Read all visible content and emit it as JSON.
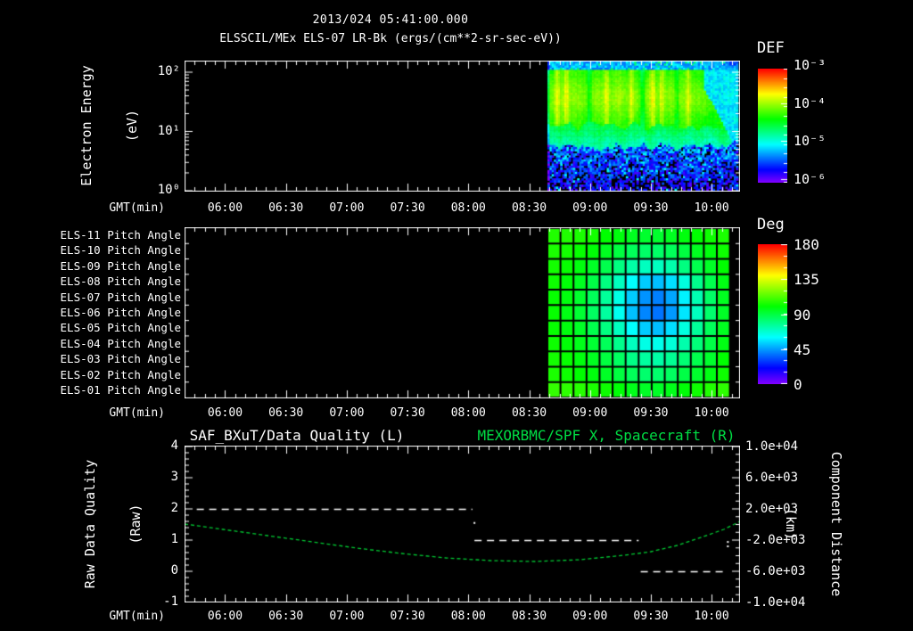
{
  "titles": {
    "datetime": "2013/024 05:41:00.000",
    "main": "ELSSCIL/MEx ELS-07 LR-Bk  (ergs/(cm**2-sr-sec-eV))"
  },
  "colorbars": {
    "def": {
      "label": "DEF",
      "tick_labels": [
        "10⁻³",
        "10⁻⁴",
        "10⁻⁵",
        "10⁻⁶"
      ],
      "scale": "log"
    },
    "deg": {
      "label": "Deg",
      "tick_labels": [
        "180",
        "135",
        "90",
        "45",
        "0"
      ],
      "range": [
        0,
        180
      ]
    }
  },
  "axes": {
    "gmt_label": "GMT(min)",
    "time_ticks": [
      "06:00",
      "06:30",
      "07:00",
      "07:30",
      "08:00",
      "08:30",
      "09:00",
      "09:30",
      "10:00"
    ],
    "time_start_min": 340,
    "time_end_min": 614,
    "energy_ticks": [
      "10²",
      "10¹",
      "10⁰"
    ],
    "quality_ticks": [
      "4",
      "3",
      "2",
      "1",
      "0",
      "-1"
    ],
    "distance_ticks": [
      "1.0e+04",
      "6.0e+03",
      "2.0e+03",
      "-2.0e+03",
      "-6.0e+03",
      "-1.0e+04"
    ]
  },
  "labels": {
    "energy": {
      "line1": "Electron Energy",
      "line2": "(eV)"
    },
    "quality": {
      "line1": "Raw Data Quality",
      "line2": "(Raw)"
    },
    "distance": {
      "line1": "Component Distance",
      "line2": "(km)"
    },
    "bottom_left_title": "SAF_BXuT/Data Quality (L)",
    "bottom_right_title": "MEXORBMC/SPF X, Spacecraft (R)",
    "pitch_rows": [
      "ELS-11 Pitch Angle",
      "ELS-10 Pitch Angle",
      "ELS-09 Pitch Angle",
      "ELS-08 Pitch Angle",
      "ELS-07 Pitch Angle",
      "ELS-06 Pitch Angle",
      "ELS-05 Pitch Angle",
      "ELS-04 Pitch Angle",
      "ELS-03 Pitch Angle",
      "ELS-02 Pitch Angle",
      "ELS-01 Pitch Angle"
    ]
  },
  "colors": {
    "background": "#000000",
    "text": "#ffffff",
    "green_title": "#00dd44",
    "curve_green": "#00cc33",
    "frame": "#ffffff"
  },
  "chart_data": [
    {
      "type": "heatmap",
      "title": "2013/024 05:41:00.000",
      "subtitle": "ELSSCIL/MEx ELS-07 LR-Bk (ergs/(cm**2-sr-sec-eV))",
      "xlabel": "GMT(min)",
      "ylabel": "Electron Energy (eV)",
      "y_scale": "log",
      "y_range_ev": [
        1,
        160
      ],
      "x_ticks": [
        "06:00",
        "06:30",
        "07:00",
        "07:30",
        "08:00",
        "08:30",
        "09:00",
        "09:30",
        "10:00"
      ],
      "x_range": [
        "05:40",
        "10:14"
      ],
      "colorbar": {
        "label": "DEF",
        "units": "ergs/(cm**2-sr-sec-eV)",
        "scale": "log",
        "ticks": [
          "1e-3",
          "1e-4",
          "1e-5",
          "1e-6"
        ]
      },
      "data_start": "08:39",
      "data_end": "10:13",
      "data_start_min": 519,
      "data_end_min": 613,
      "features": [
        "no data (black) before 08:39",
        "bright green band ~10-100 eV (~1e-4) with brighter yellow-green vertical streaks",
        "cyan band ~5-10 eV (~3e-5) with jagged lower boundary",
        "blue-violet speckle below ~5 eV (~1e-6..1e-5) with black gaps",
        "narrow blue speckle band at very top (>130 eV)",
        "upper energies turn blue (lower flux) after ~09:55"
      ],
      "render_model": {
        "seed": 42,
        "cols": 90,
        "rows": 62,
        "e_top_blue": 0.93,
        "v_top_blue": 0.2,
        "e_green_bot": 0.5,
        "v_green": 0.58,
        "peak_e": 0.72,
        "peak_amp": 0.09,
        "streak_amp": 0.07,
        "e_cyan_bot": 0.345,
        "v_cyan_bot": 0.4,
        "speckle_black_base": 0.1,
        "speckle_black_slope": 0.38,
        "bright_streaks": [
          0.05,
          0.1,
          0.31,
          0.44,
          0.555,
          0.6,
          0.74
        ],
        "dark_streaks": [
          0.22,
          0.5,
          0.68,
          0.97
        ],
        "right_fade_u": 0.82,
        "right_fade_v": 0.27
      }
    },
    {
      "type": "heatmap",
      "rows": [
        "ELS-11 Pitch Angle",
        "ELS-10 Pitch Angle",
        "ELS-09 Pitch Angle",
        "ELS-08 Pitch Angle",
        "ELS-07 Pitch Angle",
        "ELS-06 Pitch Angle",
        "ELS-05 Pitch Angle",
        "ELS-04 Pitch Angle",
        "ELS-03 Pitch Angle",
        "ELS-02 Pitch Angle",
        "ELS-01 Pitch Angle"
      ],
      "colorbar": {
        "label": "Deg",
        "range": [
          0,
          180
        ],
        "ticks": [
          180,
          135,
          90,
          45,
          0
        ]
      },
      "col_start_min": 519,
      "col_end_min": 609,
      "cols": 14,
      "values_deg": [
        [
          105,
          105,
          104,
          103,
          100,
          98,
          95,
          93,
          93,
          95,
          98,
          100,
          102,
          104
        ],
        [
          104,
          103,
          101,
          99,
          95,
          90,
          86,
          84,
          84,
          86,
          90,
          95,
          98,
          102
        ],
        [
          103,
          101,
          98,
          94,
          88,
          80,
          74,
          70,
          70,
          73,
          80,
          88,
          94,
          100
        ],
        [
          102,
          99,
          95,
          89,
          80,
          70,
          60,
          52,
          50,
          55,
          65,
          78,
          88,
          97
        ],
        [
          101,
          98,
          93,
          86,
          76,
          64,
          52,
          43,
          40,
          46,
          58,
          72,
          84,
          95
        ],
        [
          101,
          97,
          92,
          85,
          75,
          62,
          50,
          41,
          38,
          44,
          56,
          70,
          83,
          94
        ],
        [
          101,
          98,
          94,
          88,
          80,
          70,
          60,
          52,
          50,
          55,
          65,
          76,
          86,
          95
        ],
        [
          102,
          99,
          96,
          92,
          86,
          78,
          70,
          64,
          63,
          66,
          73,
          81,
          89,
          97
        ],
        [
          103,
          101,
          98,
          95,
          90,
          85,
          79,
          75,
          74,
          77,
          82,
          88,
          93,
          100
        ],
        [
          104,
          102,
          100,
          98,
          94,
          90,
          86,
          83,
          83,
          85,
          89,
          93,
          97,
          102
        ],
        [
          108,
          107,
          106,
          104,
          102,
          99,
          96,
          94,
          94,
          96,
          99,
          102,
          105,
          107
        ]
      ]
    },
    {
      "type": "line",
      "title_left": "SAF_BXuT/Data Quality (L)",
      "title_right": "MEXORBMC/SPF X, Spacecraft (R)",
      "xlabel": "GMT(min)",
      "x_range": [
        "05:40",
        "10:14"
      ],
      "left_axis": {
        "label": "Raw Data Quality (Raw)",
        "range": [
          -1,
          4
        ]
      },
      "right_axis": {
        "label": "Component Distance (km)",
        "range": [
          -10000,
          10000
        ]
      },
      "quality_segments": [
        {
          "value": 2,
          "start_min": 346,
          "end_min": 482
        },
        {
          "value": 1,
          "start_min": 483,
          "end_min": 564
        },
        {
          "value": 0,
          "start_min": 565,
          "end_min": 608
        }
      ],
      "quality_stray_points": [
        [
          483,
          1.55
        ],
        [
          608,
          0.94
        ],
        [
          608,
          0.8
        ]
      ],
      "distance_points_min_km": [
        [
          340,
          57
        ],
        [
          359,
          -629
        ],
        [
          381,
          -1429
        ],
        [
          403,
          -2229
        ],
        [
          425,
          -3029
        ],
        [
          447,
          -3714
        ],
        [
          469,
          -4286
        ],
        [
          491,
          -4629
        ],
        [
          513,
          -4743
        ],
        [
          535,
          -4514
        ],
        [
          557,
          -3943
        ],
        [
          570,
          -3486
        ],
        [
          583,
          -2686
        ],
        [
          596,
          -1543
        ],
        [
          606,
          -629
        ],
        [
          614,
          400
        ]
      ]
    }
  ]
}
